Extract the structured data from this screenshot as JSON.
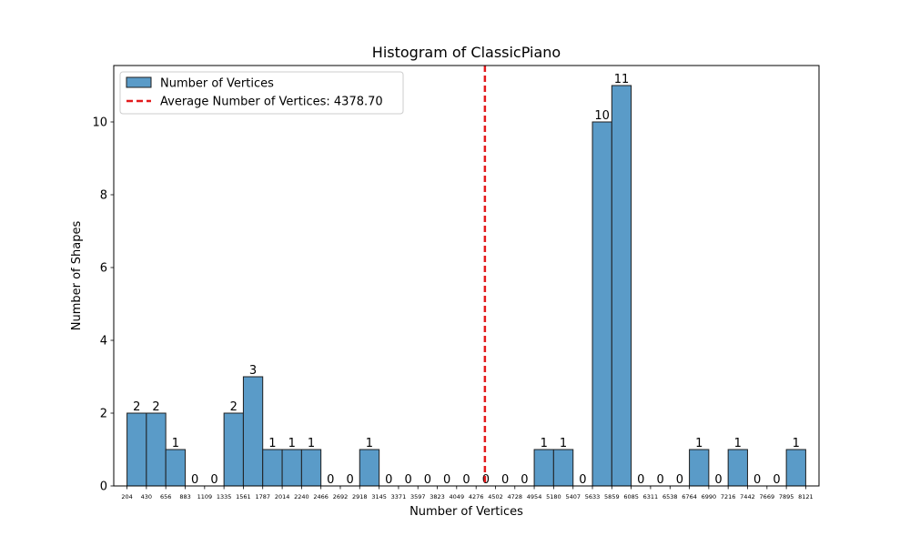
{
  "chart_data": {
    "type": "bar",
    "title": "Histogram of ClassicPiano",
    "xlabel": "Number of Vertices",
    "ylabel": "Number of Shapes",
    "bin_edges": [
      204,
      430,
      656,
      883,
      1109,
      1335,
      1561,
      1787,
      2014,
      2240,
      2466,
      2692,
      2918,
      3145,
      3371,
      3597,
      3823,
      4049,
      4276,
      4502,
      4728,
      4954,
      5180,
      5407,
      5633,
      5859,
      6085,
      6311,
      6538,
      6764,
      6990,
      7216,
      7442,
      7669,
      7895,
      8121
    ],
    "xtick_labels": [
      "204",
      "430",
      "656",
      "883",
      "1109",
      "1335",
      "1561",
      "1787",
      "2014",
      "2240",
      "2466",
      "2692",
      "2918",
      "3145",
      "3371",
      "3597",
      "3823",
      "4049",
      "4276",
      "4502",
      "4728",
      "4954",
      "5180",
      "5407",
      "5633",
      "5859",
      "6085",
      "6311",
      "6538",
      "6764",
      "6990",
      "7216",
      "7442",
      "7669",
      "7895",
      "8121"
    ],
    "values": [
      2,
      2,
      1,
      0,
      0,
      2,
      3,
      1,
      1,
      1,
      0,
      0,
      1,
      0,
      0,
      0,
      0,
      0,
      0,
      0,
      0,
      1,
      1,
      0,
      10,
      11,
      0,
      0,
      0,
      1,
      0,
      1,
      0,
      0,
      1
    ],
    "yticks": [
      0,
      2,
      4,
      6,
      8,
      10
    ],
    "ylim": [
      0,
      11.55
    ],
    "average": 4378.7,
    "legend": {
      "placement": "top-left",
      "entries": [
        {
          "label": "Number of Vertices",
          "kind": "bar"
        },
        {
          "label": "Average Number of Vertices: 4378.70",
          "kind": "dashed-line"
        }
      ]
    },
    "colors": {
      "bar_fill": "#5a9bc8",
      "bar_edge": "#1f1f1f",
      "average_line": "#e31a1c"
    },
    "grid": false
  }
}
